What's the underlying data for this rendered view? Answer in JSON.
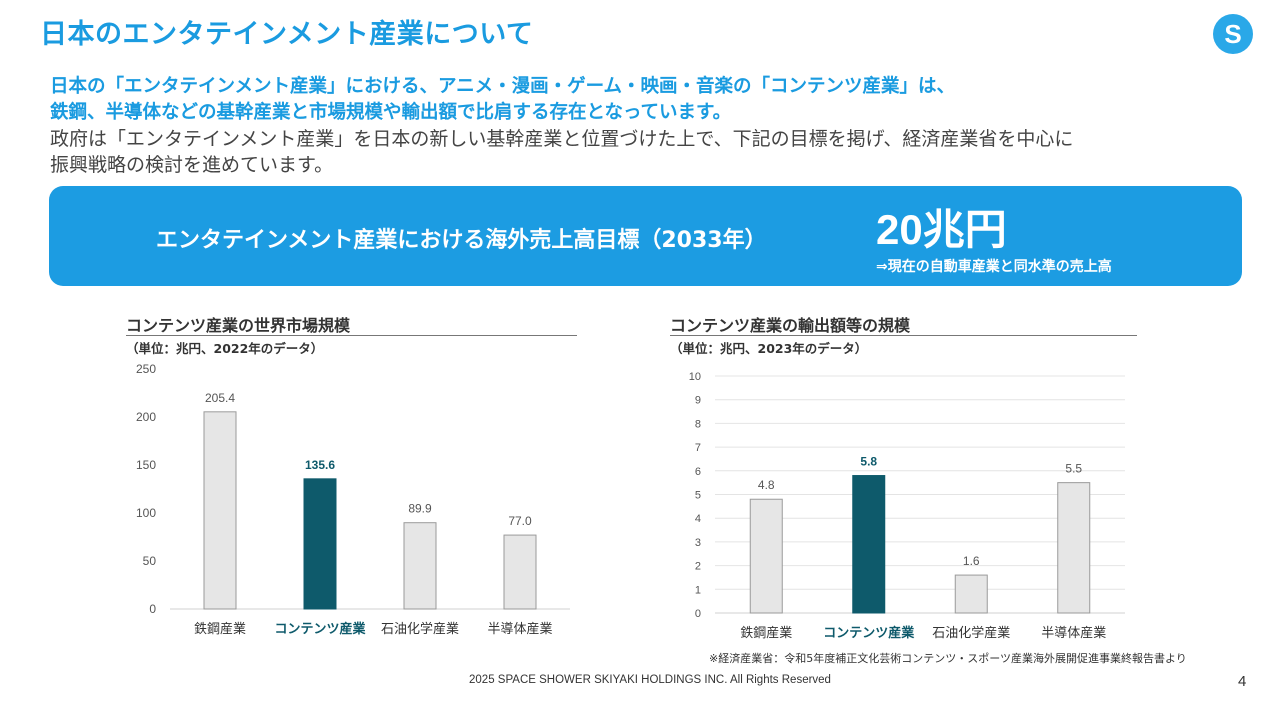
{
  "page": {
    "title": "日本のエンタテインメント産業について",
    "logo_letter": "S",
    "lead": {
      "line1": "日本の「エンタテインメント産業」における、アニメ・漫画・ゲーム・映画・音楽の「コンテンツ産業」は、",
      "line2": "鉄鋼、半導体などの基幹産業と市場規模や輸出額で比肩する存在となっています。",
      "line3": "政府は「エンタテインメント産業」を日本の新しい基幹産業と位置づけた上で、下記の目標を掲げ、経済産業省を中心に",
      "line4": "振興戦略の検討を進めています。"
    },
    "banner": {
      "label": "エンタテインメント産業における海外売上高目標（2033年）",
      "value": "20兆円",
      "note": "⇒現在の自動車産業と同水準の売上高"
    },
    "footnote": "※経済産業省：令和5年度補正文化芸術コンテンツ・スポーツ産業海外展開促進事業終報告書より",
    "footer": "2025 SPACE SHOWER SKIYAKI HOLDINGS INC. All Rights Reserved",
    "page_number": "4"
  },
  "colors": {
    "accent": "#1c9ce2",
    "highlight_bar": "#0e5a6b",
    "bar": "#e6e6e6",
    "bar_border": "#9a9a9a"
  },
  "chart_data": [
    {
      "type": "bar",
      "title": "コンテンツ産業の世界市場規模",
      "unit_note": "（単位：兆円、2022年のデータ）",
      "categories": [
        "鉄鋼産業",
        "コンテンツ産業",
        "石油化学産業",
        "半導体産業"
      ],
      "values": [
        205.4,
        135.6,
        89.9,
        77.0
      ],
      "value_labels": [
        "205.4",
        "135.6",
        "89.9",
        "77.0"
      ],
      "highlight_index": 1,
      "ylim": [
        0,
        250
      ],
      "yticks": [
        0,
        50,
        100,
        150,
        200,
        250
      ],
      "grid": false
    },
    {
      "type": "bar",
      "title": "コンテンツ産業の輸出額等の規模",
      "unit_note": "（単位：兆円、2023年のデータ）",
      "categories": [
        "鉄鋼産業",
        "コンテンツ産業",
        "石油化学産業",
        "半導体産業"
      ],
      "values": [
        4.8,
        5.8,
        1.6,
        5.5
      ],
      "value_labels": [
        "4.8",
        "5.8",
        "1.6",
        "5.5"
      ],
      "highlight_index": 1,
      "ylim": [
        0,
        10
      ],
      "yticks": [
        0,
        1,
        2,
        3,
        4,
        5,
        6,
        7,
        8,
        9,
        10
      ],
      "grid": true
    }
  ]
}
